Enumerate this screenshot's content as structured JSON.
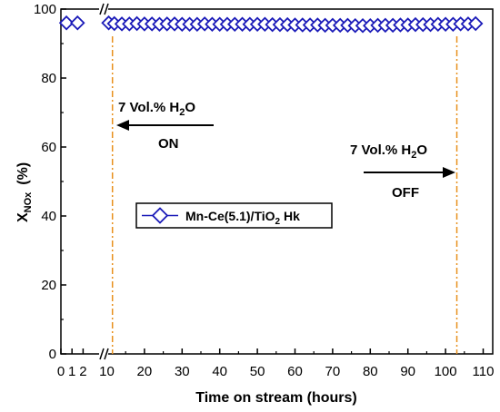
{
  "chart_data": {
    "type": "scatter",
    "xlabel": "Time on stream (hours)",
    "ylabel_main": "X",
    "ylabel_sub": "NOx",
    "ylabel_unit": "(%)",
    "xlim_break": [
      [
        0,
        2.5
      ],
      [
        10,
        110
      ]
    ],
    "ylim": [
      0,
      100
    ],
    "x_ticks": [
      "0",
      "1",
      "2",
      "10",
      "20",
      "30",
      "40",
      "50",
      "60",
      "70",
      "80",
      "90",
      "100",
      "110"
    ],
    "y_ticks": [
      "0",
      "20",
      "40",
      "60",
      "80",
      "100"
    ],
    "series": [
      {
        "name": "Mn-Ce(5.1)/TiO₂ Hk",
        "legend_main": "Mn-Ce(5.1)/TiO",
        "legend_sub": "2",
        "legend_tail": " Hk",
        "color": "#1a1ab8",
        "marker": "diamond",
        "pre_break_points": [
          [
            0.5,
            96.0
          ],
          [
            1.5,
            96.0
          ]
        ],
        "points": [
          [
            10.5,
            96.0
          ],
          [
            12,
            95.8
          ],
          [
            14,
            95.7
          ],
          [
            16,
            95.7
          ],
          [
            18,
            95.8
          ],
          [
            20,
            95.7
          ],
          [
            22,
            95.7
          ],
          [
            24,
            95.6
          ],
          [
            26,
            95.7
          ],
          [
            28,
            95.7
          ],
          [
            30,
            95.6
          ],
          [
            32,
            95.6
          ],
          [
            34,
            95.6
          ],
          [
            36,
            95.7
          ],
          [
            38,
            95.6
          ],
          [
            40,
            95.6
          ],
          [
            42,
            95.6
          ],
          [
            44,
            95.6
          ],
          [
            46,
            95.6
          ],
          [
            48,
            95.6
          ],
          [
            50,
            95.6
          ],
          [
            52,
            95.6
          ],
          [
            54,
            95.5
          ],
          [
            56,
            95.5
          ],
          [
            58,
            95.5
          ],
          [
            60,
            95.4
          ],
          [
            62,
            95.4
          ],
          [
            64,
            95.4
          ],
          [
            66,
            95.4
          ],
          [
            68,
            95.3
          ],
          [
            70,
            95.3
          ],
          [
            72,
            95.3
          ],
          [
            74,
            95.3
          ],
          [
            76,
            95.2
          ],
          [
            78,
            95.2
          ],
          [
            80,
            95.2
          ],
          [
            82,
            95.3
          ],
          [
            84,
            95.3
          ],
          [
            86,
            95.3
          ],
          [
            88,
            95.4
          ],
          [
            90,
            95.4
          ],
          [
            92,
            95.5
          ],
          [
            94,
            95.5
          ],
          [
            96,
            95.5
          ],
          [
            98,
            95.6
          ],
          [
            100,
            95.6
          ],
          [
            102,
            95.6
          ],
          [
            104,
            95.7
          ],
          [
            106,
            95.7
          ],
          [
            108,
            95.8
          ]
        ]
      }
    ],
    "vlines": [
      {
        "x": 11.5,
        "color": "#e8901c"
      },
      {
        "x": 103,
        "color": "#e8901c"
      }
    ],
    "annotations": [
      {
        "id": "on",
        "label_main": "7 Vol.% H",
        "label_sub": "2",
        "label_tail": "O",
        "state": "ON",
        "arrow": "left"
      },
      {
        "id": "off",
        "label_main": "7 Vol.% H",
        "label_sub": "2",
        "label_tail": "O",
        "state": "OFF",
        "arrow": "right"
      }
    ],
    "legend_position": "center-left",
    "grid": false
  }
}
